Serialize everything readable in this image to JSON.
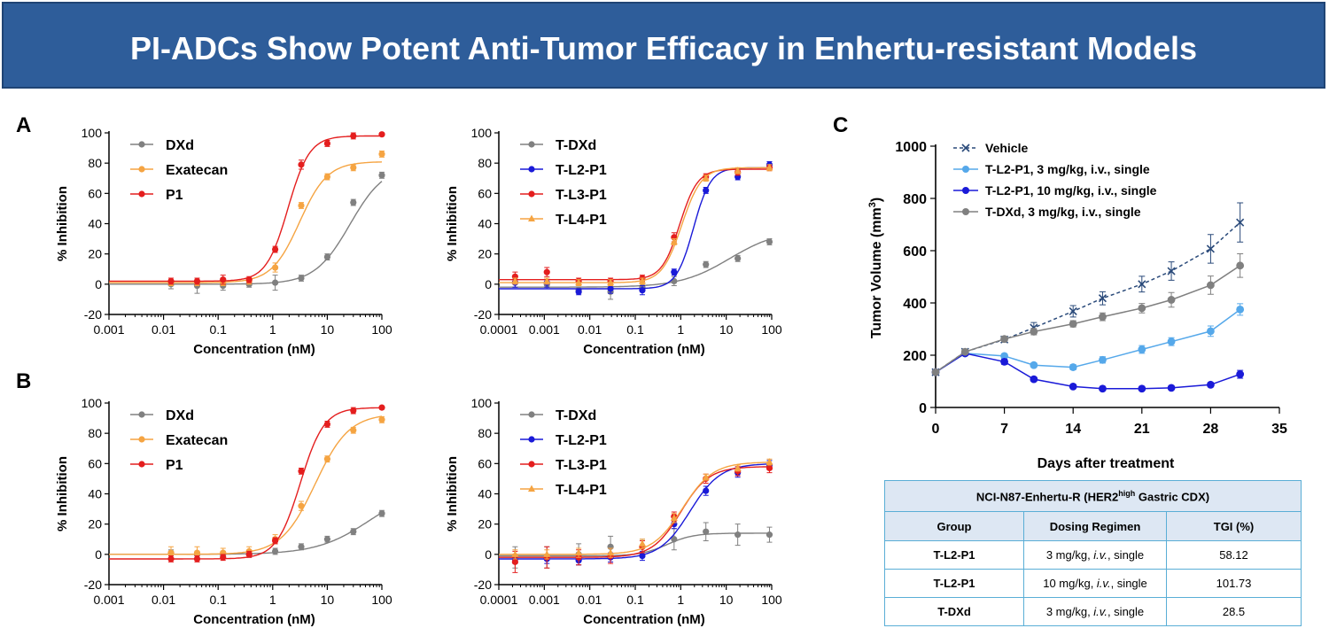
{
  "title": "PI-ADCs Show Potent Anti-Tumor Efficacy in Enhertu-resistant Models",
  "panel_labels": {
    "a": "A",
    "b": "B",
    "c": "C"
  },
  "colors": {
    "gray": "#808080",
    "orange": "#f5a442",
    "red": "#e41e1e",
    "blue": "#1a1ad8",
    "lightblue": "#55a8ea",
    "vehicle": "#2a4a7a"
  },
  "chart_data": [
    {
      "id": "A1",
      "type": "scatter",
      "xscale": "log",
      "xlabel": "Concentration (nM)",
      "ylabel": "% Inhibition",
      "xlim": [
        0.001,
        100
      ],
      "ylim": [
        -20,
        100
      ],
      "xticks": [
        "0.001",
        "0.01",
        "0.1",
        "1",
        "10",
        "100"
      ],
      "yticks": [
        "-20",
        "0",
        "20",
        "40",
        "60",
        "80",
        "100"
      ],
      "x": [
        0.0137,
        0.0412,
        0.123,
        0.37,
        1.11,
        3.33,
        10,
        30,
        100
      ],
      "series": [
        {
          "name": "DXd",
          "color": "gray",
          "marker": "circle",
          "values": [
            0,
            -1,
            -1,
            0,
            1,
            4,
            18,
            54,
            72
          ],
          "errors": [
            3,
            5,
            3,
            2,
            5,
            2,
            2,
            2,
            2
          ],
          "fit": {
            "bottom": 0,
            "top": 79,
            "ec50": 26,
            "hill": 1.35
          }
        },
        {
          "name": "Exatecan",
          "color": "orange",
          "marker": "circle",
          "values": [
            1,
            1,
            1,
            2,
            11,
            52,
            71,
            77,
            86
          ],
          "errors": [
            2,
            2,
            2,
            2,
            3,
            2,
            2,
            2,
            2
          ],
          "fit": {
            "bottom": 1,
            "top": 81,
            "ec50": 3.1,
            "hill": 1.7
          }
        },
        {
          "name": "P1",
          "color": "red",
          "marker": "circle",
          "values": [
            2,
            2,
            3,
            3,
            23,
            79,
            93,
            98,
            99
          ],
          "errors": [
            2,
            2,
            3,
            2,
            2,
            3,
            2,
            2,
            1
          ],
          "fit": {
            "bottom": 2,
            "top": 98,
            "ec50": 1.9,
            "hill": 2.2
          }
        }
      ]
    },
    {
      "id": "A2",
      "type": "scatter",
      "xscale": "log",
      "xlabel": "Concentration (nM)",
      "ylabel": "% Inhibition",
      "xlim": [
        0.0001,
        100
      ],
      "ylim": [
        -20,
        100
      ],
      "xticks": [
        "0.0001",
        "0.001",
        "0.01",
        "0.1",
        "1",
        "10",
        "100"
      ],
      "yticks": [
        "-20",
        "0",
        "20",
        "40",
        "60",
        "80",
        "100"
      ],
      "x": [
        0.000228,
        0.00114,
        0.0057,
        0.0286,
        0.143,
        0.714,
        3.57,
        17.9,
        89.3
      ],
      "series": [
        {
          "name": "T-DXd",
          "color": "gray",
          "marker": "circle",
          "values": [
            1,
            0,
            -4,
            -5,
            -2,
            2,
            13,
            17,
            28
          ],
          "errors": [
            3,
            3,
            2,
            5,
            3,
            3,
            2,
            2,
            2
          ],
          "fit": {
            "bottom": -2,
            "top": 36,
            "ec50": 12,
            "hill": 0.8
          }
        },
        {
          "name": "T-L2-P1",
          "color": "blue",
          "marker": "circle",
          "values": [
            1,
            1,
            -5,
            -3,
            -4,
            8,
            62,
            71,
            79
          ],
          "errors": [
            3,
            3,
            2,
            3,
            3,
            2,
            2,
            2,
            2
          ],
          "fit": {
            "bottom": -3,
            "top": 77,
            "ec50": 1.9,
            "hill": 2.3
          }
        },
        {
          "name": "T-L3-P1",
          "color": "red",
          "marker": "circle",
          "values": [
            5,
            8,
            2,
            2,
            4,
            31,
            71,
            74,
            77
          ],
          "errors": [
            3,
            3,
            2,
            2,
            2,
            3,
            2,
            2,
            2
          ],
          "fit": {
            "bottom": 3,
            "top": 76,
            "ec50": 0.95,
            "hill": 2.2
          }
        },
        {
          "name": "T-L4-P1",
          "color": "orange",
          "marker": "triangle",
          "values": [
            2,
            2,
            1,
            1,
            2,
            28,
            70,
            75,
            77
          ],
          "errors": [
            2,
            2,
            2,
            2,
            2,
            2,
            2,
            2,
            2
          ],
          "fit": {
            "bottom": 1,
            "top": 77,
            "ec50": 1.05,
            "hill": 2.0
          }
        }
      ]
    },
    {
      "id": "B1",
      "type": "scatter",
      "xscale": "log",
      "xlabel": "Concentration (nM)",
      "ylabel": "% Inhibition",
      "xlim": [
        0.001,
        100
      ],
      "ylim": [
        -20,
        100
      ],
      "xticks": [
        "0.001",
        "0.01",
        "0.1",
        "1",
        "10",
        "100"
      ],
      "yticks": [
        "-20",
        "0",
        "20",
        "40",
        "60",
        "80",
        "100"
      ],
      "x": [
        0.0137,
        0.0412,
        0.123,
        0.37,
        1.11,
        3.33,
        10,
        30,
        100
      ],
      "series": [
        {
          "name": "DXd",
          "color": "gray",
          "marker": "circle",
          "values": [
            1,
            0,
            0,
            0,
            2,
            5,
            10,
            15,
            27
          ],
          "errors": [
            2,
            2,
            2,
            2,
            2,
            2,
            2,
            2,
            2
          ],
          "fit": {
            "bottom": 0,
            "top": 45,
            "ec50": 60,
            "hill": 0.9
          }
        },
        {
          "name": "Exatecan",
          "color": "orange",
          "marker": "circle",
          "values": [
            1,
            1,
            1,
            2,
            10,
            32,
            63,
            82,
            89
          ],
          "errors": [
            4,
            4,
            3,
            3,
            3,
            3,
            2,
            2,
            2
          ],
          "fit": {
            "bottom": 0,
            "top": 93,
            "ec50": 6,
            "hill": 1.4
          }
        },
        {
          "name": "P1",
          "color": "red",
          "marker": "circle",
          "values": [
            -3,
            -3,
            -2,
            0,
            9,
            55,
            86,
            95,
            97
          ],
          "errors": [
            2,
            2,
            2,
            2,
            2,
            2,
            2,
            2,
            1
          ],
          "fit": {
            "bottom": -3,
            "top": 97,
            "ec50": 3.2,
            "hill": 2.0
          }
        }
      ]
    },
    {
      "id": "B2",
      "type": "scatter",
      "xscale": "log",
      "xlabel": "Concentration (nM)",
      "ylabel": "% Inhibition",
      "xlim": [
        0.0001,
        100
      ],
      "ylim": [
        -20,
        100
      ],
      "xticks": [
        "0.0001",
        "0.001",
        "0.01",
        "0.1",
        "1",
        "10",
        "100"
      ],
      "yticks": [
        "-20",
        "0",
        "20",
        "40",
        "60",
        "80",
        "100"
      ],
      "x": [
        0.000228,
        0.00114,
        0.0057,
        0.0286,
        0.143,
        0.714,
        3.57,
        17.9,
        89.3
      ],
      "series": [
        {
          "name": "T-DXd",
          "color": "gray",
          "marker": "circle",
          "values": [
            -2,
            -2,
            0,
            5,
            5,
            10,
            15,
            13,
            13
          ],
          "errors": [
            7,
            7,
            7,
            7,
            5,
            7,
            6,
            7,
            5
          ],
          "fit": {
            "bottom": -1,
            "top": 14,
            "ec50": 0.5,
            "hill": 1.5
          }
        },
        {
          "name": "T-L2-P1",
          "color": "blue",
          "marker": "circle",
          "values": [
            -3,
            -3,
            -4,
            -2,
            -1,
            20,
            42,
            54,
            59
          ],
          "errors": [
            3,
            3,
            3,
            3,
            3,
            3,
            3,
            3,
            3
          ],
          "fit": {
            "bottom": -3,
            "top": 60,
            "ec50": 1.6,
            "hill": 1.3
          }
        },
        {
          "name": "T-L3-P1",
          "color": "red",
          "marker": "circle",
          "values": [
            -5,
            -2,
            -2,
            -1,
            5,
            25,
            50,
            55,
            57
          ],
          "errors": [
            7,
            7,
            5,
            5,
            4,
            3,
            3,
            3,
            3
          ],
          "fit": {
            "bottom": -2,
            "top": 58,
            "ec50": 1.0,
            "hill": 1.4
          }
        },
        {
          "name": "T-L4-P1",
          "color": "orange",
          "marker": "triangle",
          "values": [
            0,
            0,
            1,
            1,
            7,
            24,
            51,
            57,
            61
          ],
          "errors": [
            3,
            3,
            3,
            3,
            3,
            3,
            2,
            2,
            2
          ],
          "fit": {
            "bottom": 0,
            "top": 61,
            "ec50": 1.1,
            "hill": 1.3
          }
        }
      ]
    },
    {
      "id": "C",
      "type": "line",
      "xlabel": "Days after treatment",
      "ylabel": "Tumor Volume (mm",
      "ylabel_sup": "3",
      "ylabel_end": ")",
      "xlim": [
        0,
        35
      ],
      "ylim": [
        0,
        1000
      ],
      "xticks": [
        "0",
        "7",
        "14",
        "21",
        "28",
        "35"
      ],
      "yticks": [
        "0",
        "200",
        "400",
        "600",
        "800",
        "1000"
      ],
      "x": [
        0,
        3,
        7,
        10,
        14,
        17,
        21,
        24,
        28,
        31
      ],
      "series": [
        {
          "name": "Vehicle",
          "color": "vehicle",
          "marker": "x",
          "dashed": true,
          "values": [
            135,
            213,
            260,
            305,
            368,
            418,
            472,
            522,
            607,
            708
          ],
          "errors": [
            0,
            0,
            10,
            20,
            22,
            25,
            30,
            35,
            55,
            75
          ]
        },
        {
          "name": "T-L2-P1, 3 mg/kg, i.v., single",
          "color": "lightblue",
          "marker": "circle",
          "values": [
            135,
            207,
            197,
            162,
            154,
            182,
            222,
            252,
            292,
            375
          ],
          "errors": [
            0,
            8,
            8,
            8,
            10,
            12,
            15,
            15,
            20,
            22
          ]
        },
        {
          "name": "T-L2-P1, 10 mg/kg, i.v., single",
          "color": "blue",
          "marker": "circle",
          "values": [
            135,
            207,
            175,
            108,
            80,
            72,
            72,
            75,
            87,
            127
          ],
          "errors": [
            0,
            8,
            10,
            8,
            5,
            5,
            5,
            5,
            8,
            15
          ]
        },
        {
          "name": "T-DXd, 3 mg/kg, i.v., single",
          "color": "gray",
          "marker": "circle",
          "values": [
            135,
            213,
            262,
            290,
            320,
            347,
            380,
            412,
            468,
            543
          ],
          "errors": [
            0,
            8,
            10,
            12,
            12,
            15,
            18,
            28,
            35,
            45
          ]
        }
      ]
    }
  ],
  "table": {
    "caption_pre": "NCI-N87-Enhertu-R (HER2",
    "caption_sup": "high",
    "caption_post": " Gastric CDX)",
    "headers": [
      "Group",
      "Dosing Regimen",
      "TGI (%)"
    ],
    "rows": [
      {
        "group": "T-L2-P1",
        "dose_pre": "3 mg/kg, ",
        "dose_route": "i.v.",
        "dose_post": ", single",
        "tgi": "58.12"
      },
      {
        "group": "T-L2-P1",
        "dose_pre": "10 mg/kg, ",
        "dose_route": "i.v.",
        "dose_post": ", single",
        "tgi": "101.73"
      },
      {
        "group": "T-DXd",
        "dose_pre": "3 mg/kg, ",
        "dose_route": "i.v.",
        "dose_post": ", single",
        "tgi": "28.5"
      }
    ]
  }
}
